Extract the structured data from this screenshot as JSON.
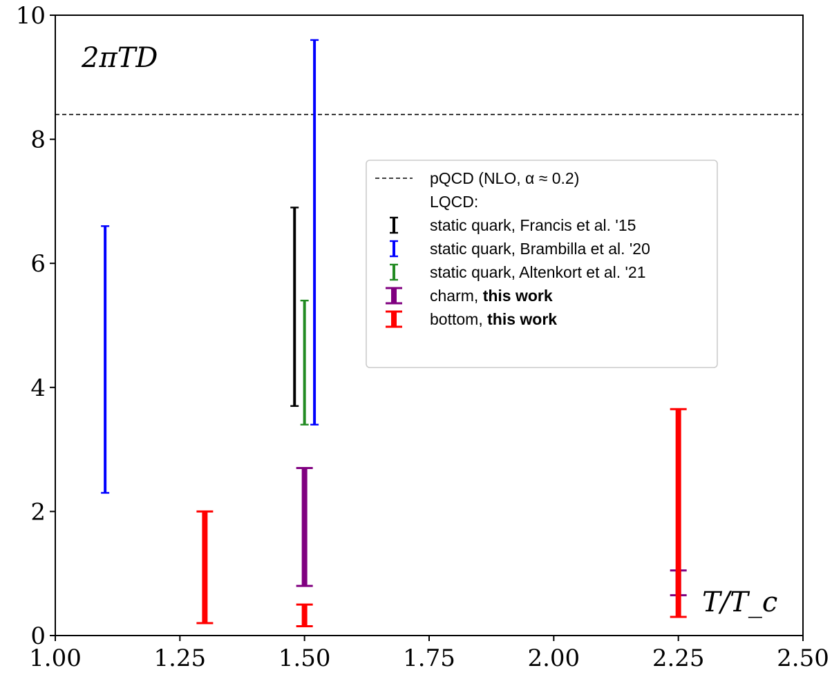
{
  "chart_data": {
    "type": "errorbar",
    "xlabel": "T/T_c",
    "ylabel": "2πTD",
    "xlim": [
      1.0,
      2.5
    ],
    "ylim": [
      0,
      10
    ],
    "xticks": [
      1.0,
      1.25,
      1.5,
      1.75,
      2.0,
      2.25,
      2.5
    ],
    "xtick_labels": [
      "1.00",
      "1.25",
      "1.50",
      "1.75",
      "2.00",
      "2.25",
      "2.50"
    ],
    "yticks": [
      0,
      2,
      4,
      6,
      8,
      10
    ],
    "ytick_labels": [
      "0",
      "2",
      "4",
      "6",
      "8",
      "10"
    ],
    "grid": false,
    "legend_position": "center-right",
    "reference_line": {
      "name": "pQCD (NLO, α ≈ 0.2)",
      "y": 8.4,
      "style": "dashed",
      "color": "#000000"
    },
    "legend_header": "LQCD:",
    "series": [
      {
        "name": "static quark, Francis et al. '15",
        "color": "#000000",
        "weight": "thin",
        "bars": [
          {
            "x": 1.48,
            "low": 3.7,
            "high": 6.9
          }
        ]
      },
      {
        "name": "static quark, Brambilla et al. '20",
        "color": "#0000ff",
        "weight": "thin",
        "bars": [
          {
            "x": 1.1,
            "low": 2.3,
            "high": 6.6
          },
          {
            "x": 1.52,
            "low": 3.4,
            "high": 9.6
          }
        ]
      },
      {
        "name": "static quark, Altenkort et al. '21",
        "color": "#228b22",
        "weight": "thin",
        "bars": [
          {
            "x": 1.5,
            "low": 3.4,
            "high": 5.4
          }
        ]
      },
      {
        "name": "charm, this work",
        "name_prefix": "charm, ",
        "name_bold": "this work",
        "color": "#800080",
        "weight": "thick",
        "bars": [
          {
            "x": 1.5,
            "low": 0.8,
            "high": 2.7
          },
          {
            "x": 2.25,
            "low": 0.65,
            "high": 1.05
          }
        ]
      },
      {
        "name": "bottom, this work",
        "name_prefix": "bottom, ",
        "name_bold": "this work",
        "color": "#ff0000",
        "weight": "thick",
        "bars": [
          {
            "x": 1.3,
            "low": 0.2,
            "high": 2.0
          },
          {
            "x": 1.5,
            "low": 0.15,
            "high": 0.5
          },
          {
            "x": 2.25,
            "low": 0.3,
            "high": 3.65
          }
        ]
      }
    ]
  }
}
